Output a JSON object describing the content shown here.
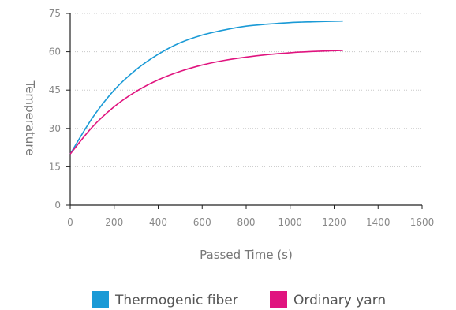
{
  "chart_data": {
    "type": "line",
    "title": "",
    "xlabel": "Passed Time (s)",
    "ylabel": "Temperature",
    "xlim": [
      0,
      1600
    ],
    "ylim": [
      0,
      75
    ],
    "x_ticks": [
      "0",
      "200",
      "400",
      "600",
      "800",
      "1000",
      "1200",
      "1400",
      "1600"
    ],
    "y_ticks": [
      "0",
      "15",
      "30",
      "45",
      "60",
      "75"
    ],
    "grid": "horizontal-dotted",
    "legend_position": "bottom-center",
    "x": [
      0,
      100,
      200,
      300,
      400,
      500,
      600,
      700,
      800,
      900,
      1000,
      1100,
      1240
    ],
    "series": [
      {
        "name": "Thermogenic fiber",
        "color": "#1a9ad6",
        "values": [
          20,
          34,
          45,
          53,
          59,
          63.5,
          66.5,
          68.5,
          70,
          70.8,
          71.4,
          71.7,
          72
        ]
      },
      {
        "name": "Ordinary yarn",
        "color": "#e0147f",
        "values": [
          20,
          30.5,
          38.5,
          44.5,
          49,
          52.3,
          54.8,
          56.6,
          57.9,
          58.9,
          59.6,
          60.1,
          60.5
        ]
      }
    ]
  }
}
